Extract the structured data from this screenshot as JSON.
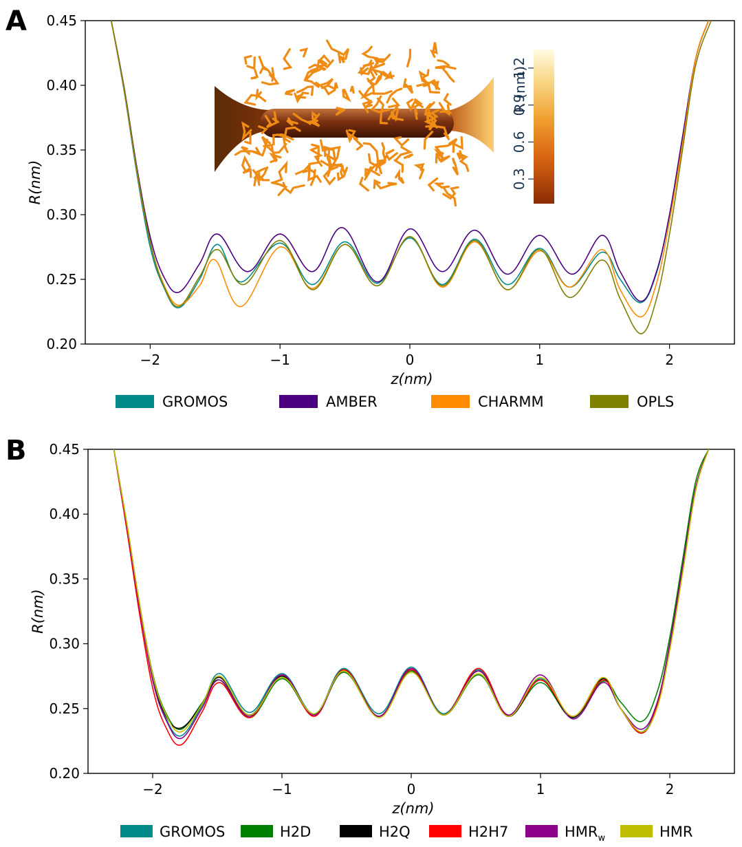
{
  "chart_data": [
    {
      "panel": "A",
      "type": "line",
      "xlabel": "z(nm)",
      "ylabel": "R(nm)",
      "xlim": [
        -2.5,
        2.5
      ],
      "ylim": [
        0.2,
        0.45
      ],
      "xticks": [
        -2,
        -1,
        0,
        1,
        2
      ],
      "xtick_labels": [
        "−2",
        "−1",
        "0",
        "1",
        "2"
      ],
      "yticks": [
        0.2,
        0.25,
        0.3,
        0.35,
        0.4,
        0.45
      ],
      "ytick_labels": [
        "0.20",
        "0.25",
        "0.30",
        "0.35",
        "0.40",
        "0.45"
      ],
      "legend_position": "bottom",
      "series": [
        {
          "name": "GROMOS",
          "color": "#008b8b",
          "x": [
            -2.3,
            -2.2,
            -2.1,
            -2.0,
            -1.9,
            -1.78,
            -1.62,
            -1.48,
            -1.3,
            -1.0,
            -0.75,
            -0.5,
            -0.25,
            0.0,
            0.25,
            0.5,
            0.75,
            1.0,
            1.23,
            1.48,
            1.62,
            1.78,
            1.9,
            2.0,
            2.1,
            2.2,
            2.3
          ],
          "y": [
            0.45,
            0.395,
            0.33,
            0.275,
            0.245,
            0.228,
            0.25,
            0.277,
            0.248,
            0.278,
            0.246,
            0.279,
            0.247,
            0.282,
            0.246,
            0.281,
            0.246,
            0.274,
            0.244,
            0.271,
            0.25,
            0.232,
            0.255,
            0.3,
            0.36,
            0.42,
            0.45
          ]
        },
        {
          "name": "AMBER",
          "color": "#4b0082",
          "x": [
            -2.3,
            -2.2,
            -2.1,
            -2.0,
            -1.9,
            -1.78,
            -1.62,
            -1.48,
            -1.25,
            -1.0,
            -0.75,
            -0.52,
            -0.25,
            0.0,
            0.25,
            0.5,
            0.75,
            1.0,
            1.25,
            1.48,
            1.62,
            1.78,
            1.9,
            2.0,
            2.1,
            2.2,
            2.3
          ],
          "y": [
            0.45,
            0.398,
            0.335,
            0.283,
            0.253,
            0.24,
            0.262,
            0.285,
            0.256,
            0.285,
            0.256,
            0.29,
            0.248,
            0.289,
            0.256,
            0.288,
            0.254,
            0.284,
            0.254,
            0.284,
            0.256,
            0.233,
            0.256,
            0.3,
            0.36,
            0.42,
            0.45
          ]
        },
        {
          "name": "CHARMM",
          "color": "#ff8c00",
          "x": [
            -2.3,
            -2.2,
            -2.1,
            -2.0,
            -1.9,
            -1.78,
            -1.62,
            -1.5,
            -1.3,
            -1.0,
            -0.75,
            -0.5,
            -0.25,
            0.0,
            0.25,
            0.5,
            0.75,
            1.0,
            1.23,
            1.48,
            1.62,
            1.78,
            1.9,
            2.0,
            2.1,
            2.2,
            2.3
          ],
          "y": [
            0.45,
            0.396,
            0.332,
            0.279,
            0.247,
            0.23,
            0.245,
            0.265,
            0.229,
            0.275,
            0.243,
            0.277,
            0.245,
            0.283,
            0.244,
            0.279,
            0.242,
            0.272,
            0.244,
            0.273,
            0.242,
            0.221,
            0.247,
            0.295,
            0.355,
            0.42,
            0.45
          ]
        },
        {
          "name": "OPLS",
          "color": "#808000",
          "x": [
            -2.3,
            -2.2,
            -2.1,
            -2.0,
            -1.9,
            -1.78,
            -1.62,
            -1.48,
            -1.28,
            -1.0,
            -0.75,
            -0.5,
            -0.25,
            0.0,
            0.25,
            0.5,
            0.75,
            1.0,
            1.23,
            1.48,
            1.62,
            1.78,
            1.9,
            2.0,
            2.1,
            2.2,
            2.32
          ],
          "y": [
            0.45,
            0.397,
            0.333,
            0.279,
            0.246,
            0.229,
            0.252,
            0.273,
            0.246,
            0.28,
            0.242,
            0.277,
            0.245,
            0.283,
            0.245,
            0.28,
            0.242,
            0.273,
            0.236,
            0.265,
            0.235,
            0.208,
            0.235,
            0.285,
            0.35,
            0.415,
            0.45
          ]
        }
      ],
      "inset": {
        "colorbar_label": "R (nm)",
        "colorbar_ticks": [
          "0.3",
          "0.6",
          "0.9",
          "1.2"
        ],
        "colorbar_tick_values": [
          0.3,
          0.6,
          0.9,
          1.2
        ],
        "colorbar_range": [
          0.1,
          1.35
        ]
      }
    },
    {
      "panel": "B",
      "type": "line",
      "xlabel": "z(nm)",
      "ylabel": "R(nm)",
      "xlim": [
        -2.5,
        2.5
      ],
      "ylim": [
        0.2,
        0.45
      ],
      "xticks": [
        -2,
        -1,
        0,
        1,
        2
      ],
      "xtick_labels": [
        "−2",
        "−1",
        "0",
        "1",
        "2"
      ],
      "yticks": [
        0.2,
        0.25,
        0.3,
        0.35,
        0.4,
        0.45
      ],
      "ytick_labels": [
        "0.20",
        "0.25",
        "0.30",
        "0.35",
        "0.40",
        "0.45"
      ],
      "legend_position": "bottom",
      "series": [
        {
          "name": "GROMOS",
          "color": "#008b8b",
          "name_main": "GROMOS",
          "name_sub": "",
          "x": [
            -2.3,
            -2.2,
            -2.1,
            -2.0,
            -1.9,
            -1.78,
            -1.62,
            -1.48,
            -1.25,
            -1.0,
            -0.75,
            -0.52,
            -0.25,
            0.0,
            0.25,
            0.52,
            0.75,
            1.0,
            1.25,
            1.48,
            1.62,
            1.78,
            1.9,
            2.0,
            2.1,
            2.2,
            2.3
          ],
          "y": [
            0.45,
            0.392,
            0.328,
            0.274,
            0.243,
            0.229,
            0.252,
            0.277,
            0.247,
            0.277,
            0.246,
            0.281,
            0.246,
            0.282,
            0.246,
            0.28,
            0.244,
            0.273,
            0.243,
            0.272,
            0.25,
            0.232,
            0.253,
            0.3,
            0.36,
            0.42,
            0.45
          ]
        },
        {
          "name": "H2D",
          "color": "#008000",
          "name_main": "H2D",
          "name_sub": "",
          "x": [
            -2.3,
            -2.2,
            -2.1,
            -2.0,
            -1.9,
            -1.78,
            -1.62,
            -1.48,
            -1.25,
            -1.0,
            -0.75,
            -0.52,
            -0.25,
            0.0,
            0.25,
            0.52,
            0.75,
            1.0,
            1.25,
            1.48,
            1.62,
            1.78,
            1.9,
            2.0,
            2.1,
            2.2,
            2.3
          ],
          "y": [
            0.45,
            0.393,
            0.33,
            0.277,
            0.247,
            0.234,
            0.254,
            0.272,
            0.243,
            0.273,
            0.245,
            0.278,
            0.244,
            0.279,
            0.245,
            0.276,
            0.244,
            0.27,
            0.243,
            0.271,
            0.255,
            0.24,
            0.262,
            0.305,
            0.365,
            0.425,
            0.45
          ]
        },
        {
          "name": "H2Q",
          "color": "#000000",
          "name_main": "H2Q",
          "name_sub": "",
          "x": [
            -2.3,
            -2.2,
            -2.1,
            -2.0,
            -1.9,
            -1.78,
            -1.62,
            -1.48,
            -1.25,
            -1.0,
            -0.75,
            -0.52,
            -0.25,
            0.0,
            0.25,
            0.52,
            0.75,
            1.0,
            1.25,
            1.48,
            1.62,
            1.78,
            1.9,
            2.0,
            2.1,
            2.2,
            2.3
          ],
          "y": [
            0.45,
            0.392,
            0.329,
            0.275,
            0.245,
            0.235,
            0.253,
            0.274,
            0.245,
            0.275,
            0.245,
            0.28,
            0.244,
            0.28,
            0.245,
            0.279,
            0.244,
            0.272,
            0.243,
            0.273,
            0.25,
            0.231,
            0.252,
            0.298,
            0.358,
            0.42,
            0.45
          ]
        },
        {
          "name": "H2H7",
          "color": "#ff0000",
          "name_main": "H2H7",
          "name_sub": "",
          "x": [
            -2.3,
            -2.2,
            -2.1,
            -2.0,
            -1.9,
            -1.78,
            -1.62,
            -1.48,
            -1.25,
            -1.0,
            -0.75,
            -0.52,
            -0.25,
            0.0,
            0.25,
            0.52,
            0.75,
            1.0,
            1.25,
            1.48,
            1.62,
            1.78,
            1.9,
            2.0,
            2.1,
            2.2,
            2.3
          ],
          "y": [
            0.45,
            0.388,
            0.322,
            0.266,
            0.236,
            0.222,
            0.247,
            0.27,
            0.243,
            0.276,
            0.244,
            0.28,
            0.244,
            0.28,
            0.245,
            0.281,
            0.245,
            0.272,
            0.244,
            0.272,
            0.25,
            0.231,
            0.252,
            0.298,
            0.358,
            0.42,
            0.45
          ]
        },
        {
          "name": "HMRw",
          "color": "#8b008b",
          "name_main": "HMR",
          "name_sub": "w",
          "x": [
            -2.3,
            -2.2,
            -2.1,
            -2.0,
            -1.9,
            -1.78,
            -1.62,
            -1.48,
            -1.25,
            -1.0,
            -0.75,
            -0.52,
            -0.25,
            0.0,
            0.25,
            0.52,
            0.75,
            1.0,
            1.25,
            1.48,
            1.62,
            1.78,
            1.9,
            2.0,
            2.1,
            2.2,
            2.3
          ],
          "y": [
            0.45,
            0.391,
            0.327,
            0.272,
            0.242,
            0.227,
            0.25,
            0.272,
            0.244,
            0.276,
            0.245,
            0.279,
            0.244,
            0.281,
            0.245,
            0.279,
            0.245,
            0.276,
            0.242,
            0.27,
            0.25,
            0.234,
            0.254,
            0.3,
            0.36,
            0.42,
            0.45
          ]
        },
        {
          "name": "HMR",
          "color": "#bfbf00",
          "name_main": "HMR",
          "name_sub": "",
          "x": [
            -2.3,
            -2.2,
            -2.1,
            -2.0,
            -1.9,
            -1.78,
            -1.62,
            -1.48,
            -1.25,
            -1.0,
            -0.75,
            -0.52,
            -0.25,
            0.0,
            0.25,
            0.52,
            0.75,
            1.0,
            1.25,
            1.48,
            1.62,
            1.78,
            1.9,
            2.0,
            2.1,
            2.2,
            2.3
          ],
          "y": [
            0.45,
            0.393,
            0.33,
            0.276,
            0.246,
            0.232,
            0.253,
            0.275,
            0.245,
            0.274,
            0.246,
            0.279,
            0.243,
            0.278,
            0.245,
            0.277,
            0.244,
            0.274,
            0.244,
            0.274,
            0.25,
            0.232,
            0.25,
            0.295,
            0.355,
            0.418,
            0.45
          ]
        }
      ]
    }
  ]
}
